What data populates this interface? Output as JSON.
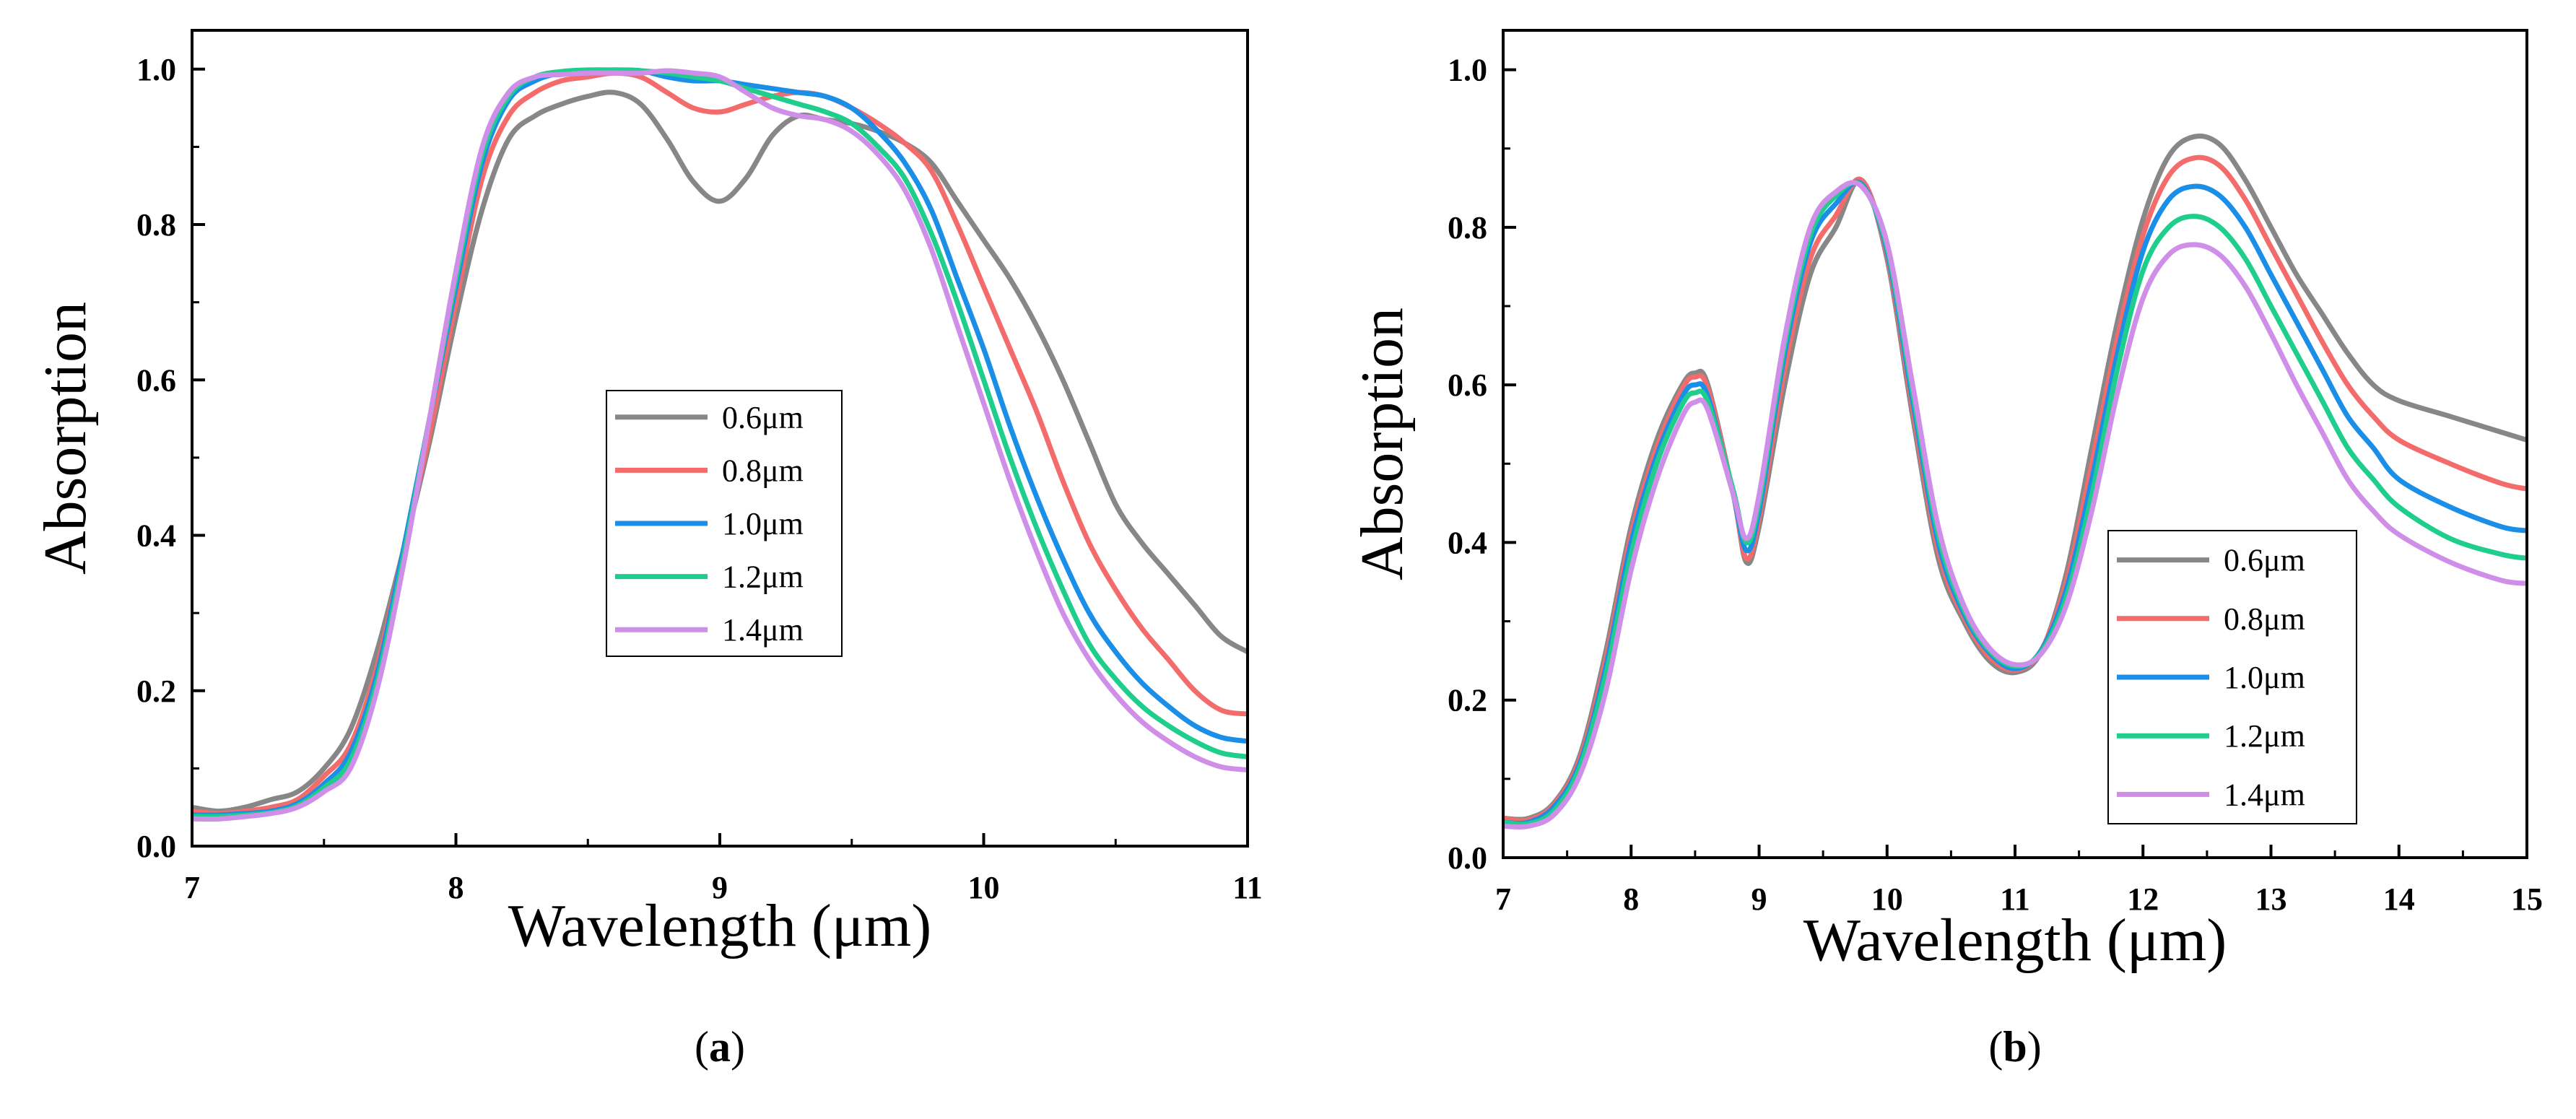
{
  "chart_data": [
    {
      "type": "line",
      "panel_label": "a",
      "xlabel": "Wavelength (μm)",
      "ylabel": "Absorption",
      "xlim": [
        7,
        11
      ],
      "ylim": [
        0,
        1.05
      ],
      "xticks": [
        "7",
        "8",
        "9",
        "10",
        "11"
      ],
      "yticks": [
        "0.0",
        "0.2",
        "0.4",
        "0.6",
        "0.8",
        "1.0"
      ],
      "legend_position": "center",
      "x": [
        7.0,
        7.1,
        7.2,
        7.3,
        7.4,
        7.5,
        7.6,
        7.7,
        7.8,
        7.9,
        8.0,
        8.1,
        8.2,
        8.3,
        8.4,
        8.5,
        8.6,
        8.7,
        8.8,
        8.9,
        9.0,
        9.1,
        9.2,
        9.3,
        9.4,
        9.5,
        9.6,
        9.7,
        9.8,
        9.9,
        10.0,
        10.1,
        10.2,
        10.3,
        10.4,
        10.5,
        10.6,
        10.7,
        10.8,
        10.9,
        11.0
      ],
      "series": [
        {
          "name": "0.6μm",
          "color": "#878787",
          "values": [
            0.05,
            0.045,
            0.05,
            0.06,
            0.07,
            0.1,
            0.15,
            0.25,
            0.38,
            0.52,
            0.68,
            0.82,
            0.91,
            0.94,
            0.955,
            0.965,
            0.97,
            0.955,
            0.91,
            0.855,
            0.83,
            0.86,
            0.915,
            0.94,
            0.935,
            0.93,
            0.92,
            0.905,
            0.88,
            0.83,
            0.78,
            0.73,
            0.67,
            0.6,
            0.52,
            0.44,
            0.39,
            0.35,
            0.31,
            0.27,
            0.25
          ]
        },
        {
          "name": "0.8μm",
          "color": "#f46b6b",
          "values": [
            0.045,
            0.042,
            0.045,
            0.05,
            0.06,
            0.09,
            0.13,
            0.23,
            0.38,
            0.53,
            0.7,
            0.86,
            0.94,
            0.97,
            0.985,
            0.99,
            0.995,
            0.99,
            0.97,
            0.95,
            0.945,
            0.955,
            0.965,
            0.97,
            0.965,
            0.95,
            0.93,
            0.905,
            0.87,
            0.8,
            0.72,
            0.64,
            0.56,
            0.47,
            0.39,
            0.33,
            0.28,
            0.24,
            0.2,
            0.175,
            0.17
          ]
        },
        {
          "name": "1.0μm",
          "color": "#1b8ee8",
          "values": [
            0.04,
            0.04,
            0.042,
            0.045,
            0.055,
            0.08,
            0.12,
            0.22,
            0.38,
            0.55,
            0.72,
            0.88,
            0.96,
            0.985,
            0.995,
            0.998,
            0.999,
            0.998,
            0.99,
            0.985,
            0.985,
            0.98,
            0.975,
            0.97,
            0.965,
            0.95,
            0.92,
            0.88,
            0.82,
            0.73,
            0.64,
            0.54,
            0.45,
            0.37,
            0.3,
            0.25,
            0.21,
            0.18,
            0.155,
            0.14,
            0.135
          ]
        },
        {
          "name": "1.2μm",
          "color": "#1fce8c",
          "values": [
            0.038,
            0.038,
            0.04,
            0.043,
            0.052,
            0.075,
            0.11,
            0.21,
            0.37,
            0.55,
            0.73,
            0.89,
            0.965,
            0.99,
            0.997,
            0.999,
            0.999,
            0.998,
            0.995,
            0.99,
            0.985,
            0.975,
            0.965,
            0.955,
            0.945,
            0.93,
            0.9,
            0.86,
            0.79,
            0.7,
            0.6,
            0.5,
            0.41,
            0.33,
            0.26,
            0.215,
            0.18,
            0.155,
            0.135,
            0.12,
            0.115
          ]
        },
        {
          "name": "1.4μm",
          "color": "#cf8ee8",
          "values": [
            0.035,
            0.035,
            0.038,
            0.042,
            0.05,
            0.07,
            0.1,
            0.2,
            0.36,
            0.55,
            0.74,
            0.9,
            0.97,
            0.99,
            0.993,
            0.995,
            0.995,
            0.995,
            0.998,
            0.995,
            0.99,
            0.97,
            0.95,
            0.94,
            0.935,
            0.92,
            0.89,
            0.845,
            0.77,
            0.67,
            0.57,
            0.47,
            0.38,
            0.3,
            0.24,
            0.195,
            0.16,
            0.135,
            0.115,
            0.102,
            0.098
          ]
        }
      ]
    },
    {
      "type": "line",
      "panel_label": "b",
      "xlabel": "Wavelength (μm)",
      "ylabel": "Absorption",
      "xlim": [
        7,
        15
      ],
      "ylim": [
        0,
        1.05
      ],
      "xticks": [
        "7",
        "8",
        "9",
        "10",
        "11",
        "12",
        "13",
        "14",
        "15"
      ],
      "yticks": [
        "0.0",
        "0.2",
        "0.4",
        "0.6",
        "0.8",
        "1.0"
      ],
      "legend_position": "bottom-right",
      "x": [
        7.0,
        7.2,
        7.4,
        7.6,
        7.8,
        8.0,
        8.2,
        8.4,
        8.5,
        8.6,
        8.8,
        8.9,
        9.0,
        9.2,
        9.4,
        9.6,
        9.8,
        10.0,
        10.2,
        10.4,
        10.6,
        10.8,
        11.0,
        11.2,
        11.4,
        11.6,
        11.8,
        12.0,
        12.2,
        12.4,
        12.6,
        12.8,
        13.0,
        13.2,
        13.4,
        13.6,
        13.8,
        14.0,
        14.4,
        14.8,
        15.0
      ],
      "series": [
        {
          "name": "0.6μm",
          "color": "#878787",
          "values": [
            0.05,
            0.05,
            0.07,
            0.13,
            0.26,
            0.42,
            0.53,
            0.6,
            0.615,
            0.6,
            0.46,
            0.375,
            0.42,
            0.6,
            0.74,
            0.8,
            0.86,
            0.76,
            0.56,
            0.38,
            0.3,
            0.25,
            0.235,
            0.26,
            0.36,
            0.52,
            0.68,
            0.81,
            0.89,
            0.915,
            0.905,
            0.86,
            0.8,
            0.74,
            0.69,
            0.64,
            0.6,
            0.58,
            0.56,
            0.54,
            0.53
          ]
        },
        {
          "name": "0.8μm",
          "color": "#f46b6b",
          "values": [
            0.05,
            0.048,
            0.068,
            0.125,
            0.25,
            0.41,
            0.52,
            0.595,
            0.61,
            0.595,
            0.46,
            0.38,
            0.43,
            0.62,
            0.76,
            0.815,
            0.86,
            0.765,
            0.57,
            0.39,
            0.305,
            0.255,
            0.238,
            0.262,
            0.35,
            0.5,
            0.66,
            0.79,
            0.865,
            0.888,
            0.878,
            0.835,
            0.775,
            0.715,
            0.655,
            0.6,
            0.56,
            0.53,
            0.5,
            0.475,
            0.468
          ]
        },
        {
          "name": "1.0μm",
          "color": "#1b8ee8",
          "values": [
            0.045,
            0.045,
            0.065,
            0.12,
            0.24,
            0.4,
            0.51,
            0.585,
            0.6,
            0.585,
            0.46,
            0.39,
            0.44,
            0.64,
            0.78,
            0.83,
            0.855,
            0.77,
            0.58,
            0.4,
            0.31,
            0.26,
            0.24,
            0.262,
            0.34,
            0.48,
            0.64,
            0.77,
            0.835,
            0.852,
            0.84,
            0.8,
            0.74,
            0.68,
            0.62,
            0.56,
            0.52,
            0.48,
            0.445,
            0.42,
            0.415
          ]
        },
        {
          "name": "1.2μm",
          "color": "#1fce8c",
          "values": [
            0.045,
            0.043,
            0.06,
            0.115,
            0.23,
            0.385,
            0.5,
            0.575,
            0.59,
            0.578,
            0.465,
            0.4,
            0.45,
            0.65,
            0.79,
            0.84,
            0.853,
            0.775,
            0.59,
            0.41,
            0.315,
            0.263,
            0.243,
            0.26,
            0.33,
            0.46,
            0.62,
            0.745,
            0.8,
            0.814,
            0.8,
            0.76,
            0.7,
            0.64,
            0.58,
            0.52,
            0.48,
            0.445,
            0.405,
            0.385,
            0.38
          ]
        },
        {
          "name": "1.4μm",
          "color": "#cf8ee8",
          "values": [
            0.04,
            0.04,
            0.055,
            0.105,
            0.21,
            0.365,
            0.48,
            0.56,
            0.578,
            0.568,
            0.46,
            0.405,
            0.46,
            0.66,
            0.8,
            0.845,
            0.852,
            0.78,
            0.6,
            0.42,
            0.32,
            0.266,
            0.245,
            0.258,
            0.32,
            0.44,
            0.59,
            0.71,
            0.765,
            0.778,
            0.765,
            0.725,
            0.665,
            0.6,
            0.54,
            0.48,
            0.44,
            0.41,
            0.375,
            0.352,
            0.348
          ]
        }
      ]
    }
  ]
}
